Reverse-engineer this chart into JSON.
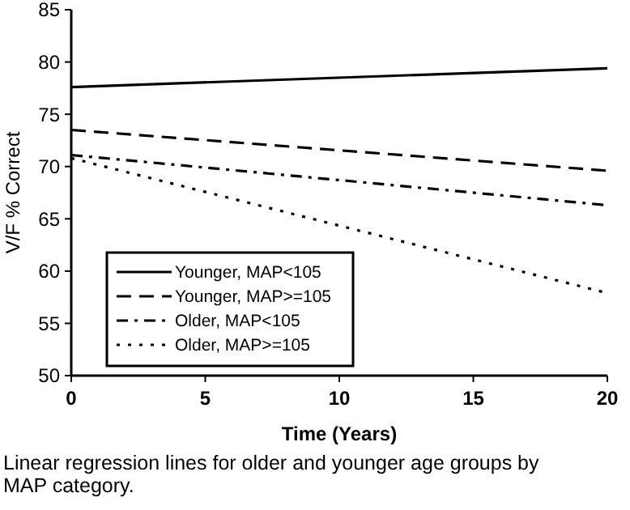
{
  "chart_data": {
    "type": "line",
    "xlabel": "Time (Years)",
    "ylabel": "V/F % Correct",
    "x": [
      0,
      20
    ],
    "xlim": [
      0,
      20
    ],
    "xticks": [
      0,
      5,
      10,
      15,
      20
    ],
    "ylim": [
      50,
      85
    ],
    "yticks": [
      50,
      55,
      60,
      65,
      70,
      75,
      80,
      85
    ],
    "legend": "bottom left",
    "marker": "none",
    "grid": false,
    "series": [
      {
        "name": "Younger, MAP<105",
        "color": "#000000",
        "line_style": "solid",
        "values": [
          77.6,
          79.4
        ]
      },
      {
        "name": "Younger, MAP>=105",
        "color": "#000000",
        "line_style": "dashed",
        "values": [
          73.5,
          69.6
        ]
      },
      {
        "name": "Older, MAP<105",
        "color": "#000000",
        "line_style": "dashdot",
        "values": [
          71.1,
          66.3
        ]
      },
      {
        "name": "Older, MAP>=105",
        "color": "#000000",
        "line_style": "dotted",
        "values": [
          70.8,
          57.9
        ]
      }
    ],
    "annotations": [
      "Linear regression lines for older and younger age groups by MAP category."
    ]
  }
}
